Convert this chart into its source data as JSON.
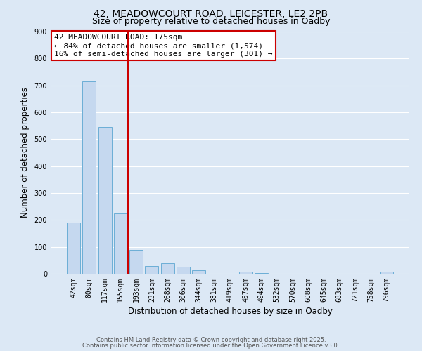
{
  "title_line1": "42, MEADOWCOURT ROAD, LEICESTER, LE2 2PB",
  "title_line2": "Size of property relative to detached houses in Oadby",
  "xlabel": "Distribution of detached houses by size in Oadby",
  "ylabel": "Number of detached properties",
  "bar_labels": [
    "42sqm",
    "80sqm",
    "117sqm",
    "155sqm",
    "193sqm",
    "231sqm",
    "268sqm",
    "306sqm",
    "344sqm",
    "381sqm",
    "419sqm",
    "457sqm",
    "494sqm",
    "532sqm",
    "570sqm",
    "608sqm",
    "645sqm",
    "683sqm",
    "721sqm",
    "758sqm",
    "796sqm"
  ],
  "bar_values": [
    190,
    715,
    545,
    225,
    90,
    30,
    40,
    25,
    12,
    0,
    0,
    8,
    3,
    0,
    0,
    0,
    0,
    0,
    0,
    0,
    8
  ],
  "bar_color": "#c5d8ef",
  "bar_edge_color": "#6baed6",
  "vline_x": 3.5,
  "vline_color": "#cc0000",
  "annotation_text": "42 MEADOWCOURT ROAD: 175sqm\n← 84% of detached houses are smaller (1,574)\n16% of semi-detached houses are larger (301) →",
  "annotation_box_color": "#ffffff",
  "annotation_box_edge_color": "#cc0000",
  "ylim": [
    0,
    900
  ],
  "yticks": [
    0,
    100,
    200,
    300,
    400,
    500,
    600,
    700,
    800,
    900
  ],
  "background_color": "#dce8f5",
  "grid_color": "#ffffff",
  "footer_line1": "Contains HM Land Registry data © Crown copyright and database right 2025.",
  "footer_line2": "Contains public sector information licensed under the Open Government Licence v3.0.",
  "title_fontsize": 10,
  "subtitle_fontsize": 9,
  "axis_label_fontsize": 8.5,
  "tick_fontsize": 7,
  "annotation_fontsize": 8,
  "footer_fontsize": 6
}
